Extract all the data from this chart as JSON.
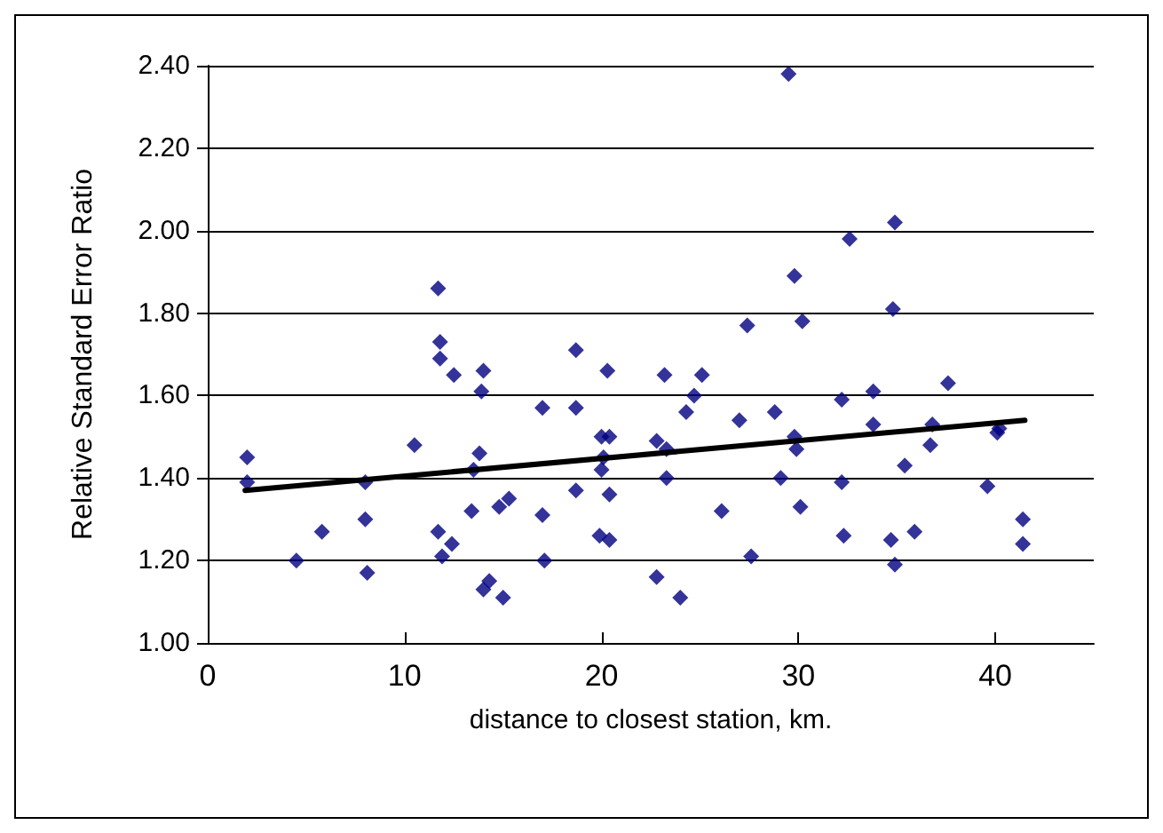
{
  "chart_data": {
    "type": "scatter",
    "xlabel": "distance to closest station, km.",
    "ylabel": "Relative Standard Error Ratio",
    "xlim": [
      0,
      45
    ],
    "xticks": [
      0,
      10,
      20,
      30,
      40
    ],
    "ylim": [
      1,
      2.4
    ],
    "yticks": [
      {
        "value": 1,
        "label": "1.00"
      },
      {
        "value": 1.2,
        "label": "1.20"
      },
      {
        "value": 1.4,
        "label": "1.40"
      },
      {
        "value": 1.6,
        "label": "1.60"
      },
      {
        "value": 1.8,
        "label": "1.80"
      },
      {
        "value": 2,
        "label": "2.00"
      },
      {
        "value": 2.2,
        "label": "2.20"
      },
      {
        "value": 2.4,
        "label": "2.40"
      }
    ],
    "grid": "y",
    "marker": "diamond",
    "series": [
      {
        "color": "#000080",
        "x": [
          2,
          2,
          4.5,
          5.8,
          8,
          8,
          8.1,
          10.5,
          11.7,
          11.8,
          11.8,
          12.5,
          13.9,
          14,
          13.8,
          13.5,
          11.7,
          11.9,
          12.4,
          13.4,
          14,
          14.3,
          14.8,
          15,
          15.3,
          17,
          17,
          17.1,
          18.7,
          18.7,
          18.7,
          19.9,
          20,
          20.1,
          20,
          20.3,
          20.4,
          20.4,
          20.4,
          22.8,
          22.8,
          23.2,
          23.3,
          23.3,
          24,
          24.3,
          24.7,
          25.1,
          26.1,
          27,
          27.4,
          27.6,
          28.8,
          29.1,
          29.5,
          29.8,
          29.9,
          29.8,
          30.2,
          30.1,
          32.2,
          32.2,
          32.3,
          32.6,
          33.8,
          33.8,
          34.7,
          34.8,
          34.9,
          34.9,
          35.4,
          35.9,
          36.7,
          36.8,
          37.6,
          39.6,
          40.1,
          40.2,
          41.4,
          41.4
        ],
        "values": [
          1.45,
          1.39,
          1.2,
          1.27,
          1.39,
          1.3,
          1.17,
          1.48,
          1.86,
          1.73,
          1.69,
          1.65,
          1.61,
          1.66,
          1.46,
          1.42,
          1.27,
          1.21,
          1.24,
          1.32,
          1.13,
          1.15,
          1.33,
          1.11,
          1.35,
          1.57,
          1.31,
          1.2,
          1.71,
          1.57,
          1.37,
          1.26,
          1.42,
          1.45,
          1.5,
          1.66,
          1.5,
          1.36,
          1.25,
          1.49,
          1.16,
          1.65,
          1.47,
          1.4,
          1.11,
          1.56,
          1.6,
          1.65,
          1.32,
          1.54,
          1.77,
          1.21,
          1.56,
          1.4,
          2.38,
          1.89,
          1.47,
          1.5,
          1.78,
          1.33,
          1.59,
          1.39,
          1.26,
          1.98,
          1.53,
          1.61,
          1.25,
          1.81,
          2.02,
          1.19,
          1.43,
          1.27,
          1.48,
          1.53,
          1.63,
          1.38,
          1.51,
          1.52,
          1.3,
          1.24
        ]
      },
      {
        "type": "line",
        "color": "#000000",
        "marker": "none",
        "line_style": "solid",
        "x": [
          1.9,
          41.5
        ],
        "values": [
          1.37,
          1.54
        ]
      }
    ]
  }
}
